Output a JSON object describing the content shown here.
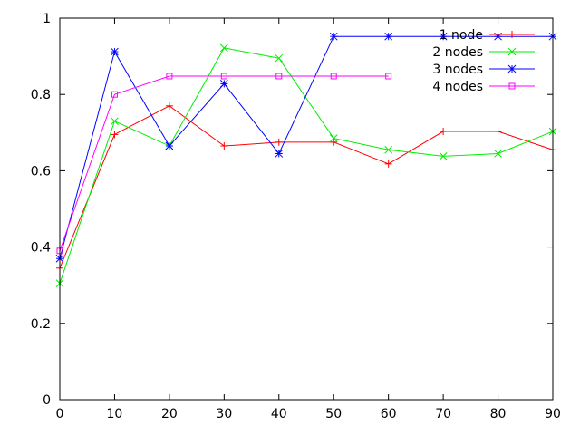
{
  "chart_data": {
    "type": "line",
    "title": "",
    "xlabel": "",
    "ylabel": "",
    "xlim": [
      0,
      90
    ],
    "ylim": [
      0,
      1
    ],
    "x_ticks": [
      "0",
      "10",
      "20",
      "30",
      "40",
      "50",
      "60",
      "70",
      "80",
      "90"
    ],
    "y_ticks": [
      "0",
      "0.2",
      "0.4",
      "0.6",
      "0.8",
      "1"
    ],
    "grid": false,
    "legend_position": "top-right",
    "series": [
      {
        "name": "1 node",
        "color": "#ff0000",
        "marker": "plus",
        "x": [
          0,
          10,
          20,
          30,
          40,
          50,
          60,
          70,
          80,
          90
        ],
        "y": [
          0.345,
          0.695,
          0.77,
          0.665,
          0.675,
          0.675,
          0.618,
          0.703,
          0.703,
          0.655
        ]
      },
      {
        "name": "2 nodes",
        "color": "#00ee00",
        "marker": "cross",
        "x": [
          0,
          10,
          20,
          30,
          40,
          50,
          60,
          70,
          80,
          90
        ],
        "y": [
          0.305,
          0.73,
          0.665,
          0.922,
          0.895,
          0.685,
          0.655,
          0.638,
          0.645,
          0.703
        ]
      },
      {
        "name": "3 nodes",
        "color": "#0000ff",
        "marker": "star",
        "x": [
          0,
          10,
          20,
          30,
          40,
          50,
          60,
          70,
          80,
          90
        ],
        "y": [
          0.37,
          0.912,
          0.665,
          0.828,
          0.645,
          0.952,
          0.952,
          0.952,
          0.952,
          0.952
        ]
      },
      {
        "name": "4 nodes",
        "color": "#ff00ff",
        "marker": "square",
        "x": [
          0,
          10,
          20,
          30,
          40,
          50,
          60
        ],
        "y": [
          0.39,
          0.8,
          0.848,
          0.848,
          0.848,
          0.848,
          0.848
        ]
      }
    ]
  }
}
